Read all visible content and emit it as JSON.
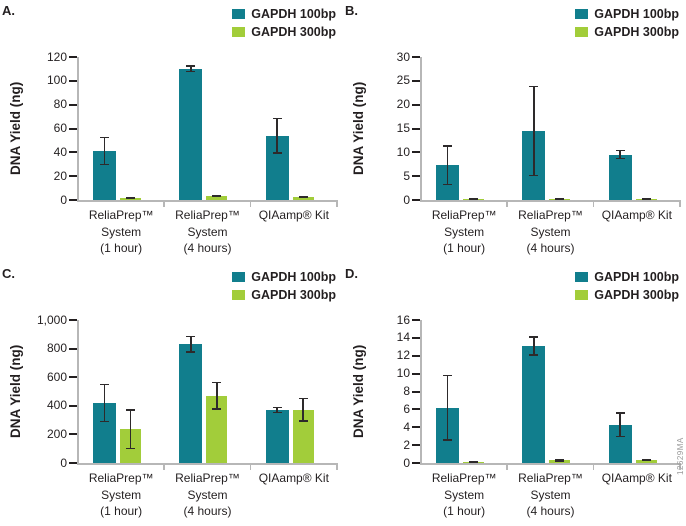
{
  "watermark": "12629MA",
  "colors": {
    "teal": "#117e8d",
    "green": "#a2cd3a",
    "axis_gray": "#b7b7b7",
    "text": "#231f20",
    "error_bar": "#2d2a2b"
  },
  "chart_data": [
    {
      "panel": "A.",
      "type": "bar",
      "title": "",
      "xlabel": "",
      "ylabel": "DNA Yield (ng)",
      "ylim": [
        0,
        120
      ],
      "yticks": [
        "0",
        "20",
        "40",
        "60",
        "80",
        "100",
        "120"
      ],
      "grid": false,
      "legend_position": "top-right",
      "categories": [
        [
          "ReliaPrep™",
          "System",
          "(1 hour)"
        ],
        [
          "ReliaPrep™",
          "System",
          "(4 hours)"
        ],
        [
          "QIAamp® Kit"
        ]
      ],
      "series": [
        {
          "name": "GAPDH 100bp",
          "color": "#117e8d",
          "values": [
            41,
            110,
            54
          ],
          "errors": [
            12,
            3,
            15
          ]
        },
        {
          "name": "GAPDH 300bp",
          "color": "#a2cd3a",
          "values": [
            1.5,
            3.5,
            2.5
          ],
          "errors": [
            0.8,
            0.5,
            0.8
          ]
        }
      ]
    },
    {
      "panel": "B.",
      "type": "bar",
      "title": "",
      "xlabel": "",
      "ylabel": "DNA Yield (ng)",
      "ylim": [
        0,
        30
      ],
      "yticks": [
        "0",
        "5",
        "10",
        "15",
        "20",
        "25",
        "30"
      ],
      "grid": false,
      "legend_position": "top-right",
      "categories": [
        [
          "ReliaPrep™",
          "System",
          "(1 hour)"
        ],
        [
          "ReliaPrep™",
          "System",
          "(4 hours)"
        ],
        [
          "QIAamp® Kit"
        ]
      ],
      "series": [
        {
          "name": "GAPDH 100bp",
          "color": "#117e8d",
          "values": [
            7.3,
            14.5,
            9.5
          ],
          "errors": [
            4.2,
            9.5,
            1.0
          ]
        },
        {
          "name": "GAPDH 300bp",
          "color": "#a2cd3a",
          "values": [
            0.15,
            0.25,
            0.25
          ],
          "errors": [
            0.1,
            0.1,
            0.1
          ]
        }
      ]
    },
    {
      "panel": "C.",
      "type": "bar",
      "title": "",
      "xlabel": "",
      "ylabel": "DNA Yield (ng)",
      "ylim": [
        0,
        1000
      ],
      "yticks": [
        "0",
        "200",
        "400",
        "600",
        "800",
        "1,000"
      ],
      "grid": false,
      "legend_position": "top-right",
      "categories": [
        [
          "ReliaPrep™",
          "System",
          "(1 hour)"
        ],
        [
          "ReliaPrep™",
          "System",
          "(4 hours)"
        ],
        [
          "QIAamp® Kit"
        ]
      ],
      "series": [
        {
          "name": "GAPDH 100bp",
          "color": "#117e8d",
          "values": [
            420,
            830,
            370
          ],
          "errors": [
            135,
            60,
            22
          ]
        },
        {
          "name": "GAPDH 300bp",
          "color": "#a2cd3a",
          "values": [
            235,
            470,
            372
          ],
          "errors": [
            140,
            97,
            85
          ]
        }
      ]
    },
    {
      "panel": "D.",
      "type": "bar",
      "title": "",
      "xlabel": "",
      "ylabel": "DNA Yield (ng)",
      "ylim": [
        0,
        16
      ],
      "yticks": [
        "0",
        "2",
        "4",
        "6",
        "8",
        "10",
        "12",
        "14",
        "16"
      ],
      "grid": false,
      "legend_position": "top-right",
      "categories": [
        [
          "ReliaPrep™",
          "System",
          "(1 hour)"
        ],
        [
          "ReliaPrep™",
          "System",
          "(4 hours)"
        ],
        [
          "QIAamp® Kit"
        ]
      ],
      "series": [
        {
          "name": "GAPDH 100bp",
          "color": "#117e8d",
          "values": [
            6.2,
            13.1,
            4.3
          ],
          "errors": [
            3.7,
            1.1,
            1.4
          ]
        },
        {
          "name": "GAPDH 300bp",
          "color": "#a2cd3a",
          "values": [
            0.12,
            0.3,
            0.3
          ],
          "errors": [
            0.08,
            0.15,
            0.1
          ]
        }
      ]
    }
  ]
}
